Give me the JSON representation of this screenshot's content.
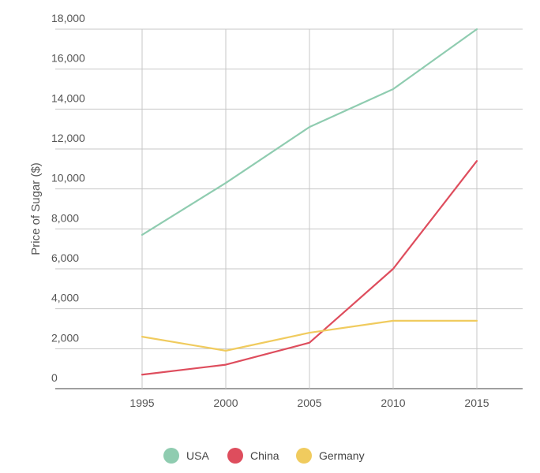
{
  "chart_data": {
    "type": "line",
    "title": "",
    "xlabel": "",
    "ylabel": "Price of Sugar ($)",
    "x": [
      1995,
      2000,
      2005,
      2010,
      2015
    ],
    "x_tick_labels": [
      "1995",
      "2000",
      "2005",
      "2010",
      "2015"
    ],
    "y_tick_labels": [
      "0",
      "2,000",
      "4,000",
      "6,000",
      "8,000",
      "10,000",
      "12,000",
      "14,000",
      "16,000",
      "18,000"
    ],
    "ylim": [
      0,
      18000
    ],
    "xlim": [
      1990,
      2020
    ],
    "grid": true,
    "legend_position": "bottom",
    "series": [
      {
        "name": "USA",
        "color": "#8fccb0",
        "values": [
          7700,
          10300,
          13100,
          15000,
          18000
        ]
      },
      {
        "name": "China",
        "color": "#de4d5d",
        "values": [
          700,
          1200,
          2300,
          6000,
          11400
        ]
      },
      {
        "name": "Germany",
        "color": "#f0cb5e",
        "values": [
          2600,
          1900,
          2800,
          3400,
          3400
        ]
      }
    ]
  }
}
